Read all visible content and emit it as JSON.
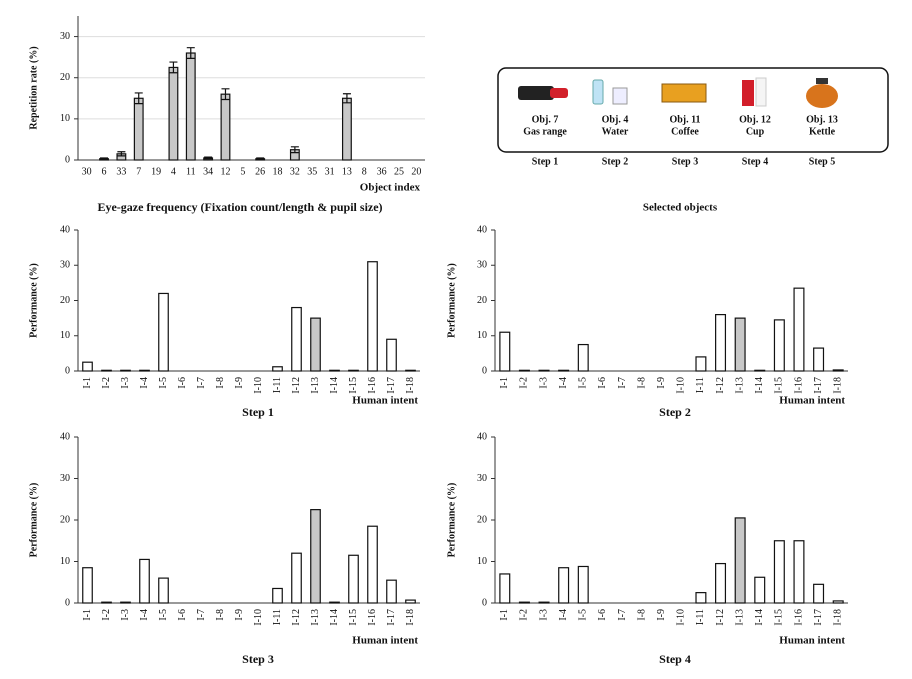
{
  "chart_data": [
    {
      "type": "bar",
      "title": "Eye-gaze frequency (Fixation count/length & pupil size)",
      "y_label": "Repetition rate (%)",
      "x_label": "Object index",
      "categories": [
        "30",
        "6",
        "33",
        "7",
        "19",
        "4",
        "11",
        "34",
        "12",
        "5",
        "26",
        "18",
        "32",
        "35",
        "31",
        "13",
        "8",
        "36",
        "25",
        "20"
      ],
      "values": [
        0,
        0.3,
        1.5,
        15,
        0,
        22.5,
        26,
        0.5,
        16,
        0,
        0.3,
        0,
        2.5,
        0,
        0,
        15,
        0,
        0,
        0,
        0
      ],
      "errors": [
        0,
        0.2,
        0.5,
        1.3,
        0,
        1.3,
        1.3,
        0.2,
        1.3,
        0,
        0.2,
        0,
        0.7,
        0,
        0,
        1.1,
        0,
        0,
        0,
        0
      ],
      "color": "#c8c8c8",
      "ylim": [
        0,
        35
      ],
      "yticks": [
        0,
        10,
        20,
        30
      ],
      "grid": true
    },
    {
      "type": "bar",
      "title": "Step 1",
      "y_label": "Performance (%)",
      "x_label": "Human intent",
      "categories": [
        "I-1",
        "I-2",
        "I-3",
        "I-4",
        "I-5",
        "I-6",
        "I-7",
        "I-8",
        "I-9",
        "I-10",
        "I-11",
        "I-12",
        "I-13",
        "I-14",
        "I-15",
        "I-16",
        "I-17",
        "I-18"
      ],
      "values": [
        2.5,
        0.2,
        0.2,
        0.2,
        22,
        0,
        0,
        0,
        0,
        0,
        1.2,
        18,
        15,
        0.2,
        0.2,
        31,
        9,
        0.2
      ],
      "colors": [
        "#ffffff",
        "#ffffff",
        "#ffffff",
        "#ffffff",
        "#ffffff",
        "#ffffff",
        "#ffffff",
        "#ffffff",
        "#ffffff",
        "#ffffff",
        "#ffffff",
        "#ffffff",
        "#c8c8c8",
        "#ffffff",
        "#ffffff",
        "#ffffff",
        "#ffffff",
        "#ffffff"
      ],
      "ylim": [
        0,
        40
      ],
      "yticks": [
        0,
        10,
        20,
        30,
        40
      ],
      "grid": false
    },
    {
      "type": "bar",
      "title": "Step 2",
      "y_label": "Performance (%)",
      "x_label": "Human intent",
      "categories": [
        "I-1",
        "I-2",
        "I-3",
        "I-4",
        "I-5",
        "I-6",
        "I-7",
        "I-8",
        "I-9",
        "I-10",
        "I-11",
        "I-12",
        "I-13",
        "I-14",
        "I-15",
        "I-16",
        "I-17",
        "I-18"
      ],
      "values": [
        11,
        0.2,
        0.2,
        0.2,
        7.5,
        0,
        0,
        0,
        0,
        0,
        4,
        16,
        15,
        0.2,
        14.5,
        23.5,
        6.5,
        0.3
      ],
      "colors": [
        "#ffffff",
        "#ffffff",
        "#ffffff",
        "#ffffff",
        "#ffffff",
        "#ffffff",
        "#ffffff",
        "#ffffff",
        "#ffffff",
        "#ffffff",
        "#ffffff",
        "#ffffff",
        "#c8c8c8",
        "#ffffff",
        "#ffffff",
        "#ffffff",
        "#ffffff",
        "#ffffff"
      ],
      "ylim": [
        0,
        40
      ],
      "yticks": [
        0,
        10,
        20,
        30,
        40
      ],
      "grid": false
    },
    {
      "type": "bar",
      "title": "Step 3",
      "y_label": "Performance (%)",
      "x_label": "Human intent",
      "categories": [
        "I-1",
        "I-2",
        "I-3",
        "I-4",
        "I-5",
        "I-6",
        "I-7",
        "I-8",
        "I-9",
        "I-10",
        "I-11",
        "I-12",
        "I-13",
        "I-14",
        "I-15",
        "I-16",
        "I-17",
        "I-18"
      ],
      "values": [
        8.5,
        0.2,
        0.2,
        10.5,
        6,
        0,
        0,
        0,
        0,
        0,
        3.5,
        12,
        22.5,
        0.2,
        11.5,
        18.5,
        5.5,
        0.7
      ],
      "colors": [
        "#ffffff",
        "#ffffff",
        "#ffffff",
        "#ffffff",
        "#ffffff",
        "#ffffff",
        "#ffffff",
        "#ffffff",
        "#ffffff",
        "#ffffff",
        "#ffffff",
        "#ffffff",
        "#c8c8c8",
        "#ffffff",
        "#ffffff",
        "#ffffff",
        "#ffffff",
        "#ffffff"
      ],
      "ylim": [
        0,
        40
      ],
      "yticks": [
        0,
        10,
        20,
        30,
        40
      ],
      "grid": false
    },
    {
      "type": "bar",
      "title": "Step 4",
      "y_label": "Performance (%)",
      "x_label": "Human intent",
      "categories": [
        "I-1",
        "I-2",
        "I-3",
        "I-4",
        "I-5",
        "I-6",
        "I-7",
        "I-8",
        "I-9",
        "I-10",
        "I-11",
        "I-12",
        "I-13",
        "I-14",
        "I-15",
        "I-16",
        "I-17",
        "I-18"
      ],
      "values": [
        7,
        0.2,
        0.2,
        8.5,
        8.8,
        0,
        0,
        0,
        0,
        0,
        2.5,
        9.5,
        20.5,
        6.2,
        15,
        15,
        4.5,
        0.5
      ],
      "colors": [
        "#ffffff",
        "#ffffff",
        "#ffffff",
        "#ffffff",
        "#ffffff",
        "#ffffff",
        "#ffffff",
        "#ffffff",
        "#ffffff",
        "#ffffff",
        "#ffffff",
        "#ffffff",
        "#c8c8c8",
        "#ffffff",
        "#ffffff",
        "#ffffff",
        "#ffffff",
        "#ffffff"
      ],
      "ylim": [
        0,
        40
      ],
      "yticks": [
        0,
        10,
        20,
        30,
        40
      ],
      "grid": false
    }
  ],
  "selected_objects": {
    "title": "Selected objects",
    "items": [
      {
        "object": "Obj. 7",
        "name": "Gas range",
        "step": "Step 1"
      },
      {
        "object": "Obj. 4",
        "name": "Water",
        "step": "Step 2"
      },
      {
        "object": "Obj. 11",
        "name": "Coffee",
        "step": "Step 3"
      },
      {
        "object": "Obj. 12",
        "name": "Cup",
        "step": "Step 4"
      },
      {
        "object": "Obj. 13",
        "name": "Kettle",
        "step": "Step 5"
      }
    ]
  }
}
